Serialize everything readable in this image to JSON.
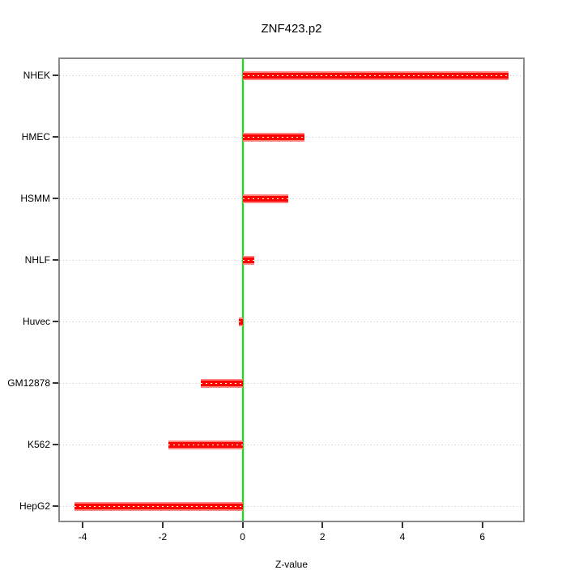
{
  "chart_data": {
    "type": "bar",
    "orientation": "horizontal",
    "title": "ZNF423.p2",
    "xlabel": "Z-value",
    "ylabel": "",
    "categories_top_to_bottom": [
      "NHEK",
      "HMEC",
      "HSMM",
      "NHLF",
      "Huvec",
      "GM12878",
      "K562",
      "HepG2"
    ],
    "values": [
      6.65,
      1.55,
      1.15,
      0.3,
      -0.1,
      -1.05,
      -1.85,
      -4.2
    ],
    "xlim": [
      -4.61,
      7.06
    ],
    "x_ticks": [
      -4,
      -2,
      0,
      2,
      4,
      6
    ],
    "grid": "horizontal dotted lines at each category",
    "legend": "none",
    "reference_line_x": 0,
    "colors": {
      "bar_fill": "#ff0000",
      "bar_edge": "#ff8484",
      "bar_center_dots": "#ffffff",
      "reference_line": "#00ee00",
      "gridline": "#c9c9c9",
      "box_border": "#888888",
      "tick": "#333333",
      "background": "#ffffff"
    }
  }
}
